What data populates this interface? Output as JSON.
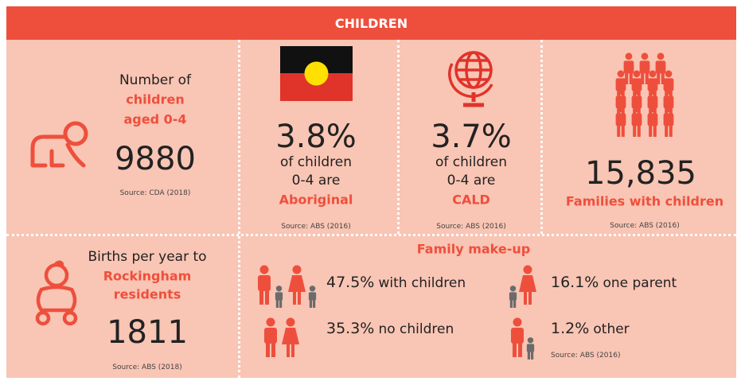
{
  "header": {
    "title": "CHILDREN"
  },
  "cards": [
    {
      "label": [
        "Number of"
      ],
      "highlight": [
        "children",
        "aged 0-4"
      ],
      "value": "9880",
      "source": "Source: CDA (2018)"
    },
    {
      "value": "3.8%",
      "label": [
        "of children",
        "0-4 are"
      ],
      "highlight": [
        "Aboriginal"
      ],
      "source": "Source: ABS (2016)"
    },
    {
      "value": "3.7%",
      "label": [
        "of children",
        "0-4 are"
      ],
      "highlight": [
        "CALD"
      ],
      "source": "Source: ABS (2016)"
    },
    {
      "value": "15,835",
      "highlight": [
        "Families with children"
      ],
      "source": "Source: ABS (2016)"
    },
    {
      "label": [
        "Births per year to"
      ],
      "highlight": [
        "Rockingham",
        "residents"
      ],
      "value": "1811",
      "source": "Source: ABS (2018)"
    }
  ],
  "family": {
    "title": "Family make-up",
    "items": [
      {
        "value": "47.5%",
        "label": "with children"
      },
      {
        "value": "16.1%",
        "label": "one parent"
      },
      {
        "value": "35.3%",
        "label": "no children"
      },
      {
        "value": "1.2%",
        "label": "other"
      }
    ],
    "source": "Source: ABS (2016)"
  }
}
